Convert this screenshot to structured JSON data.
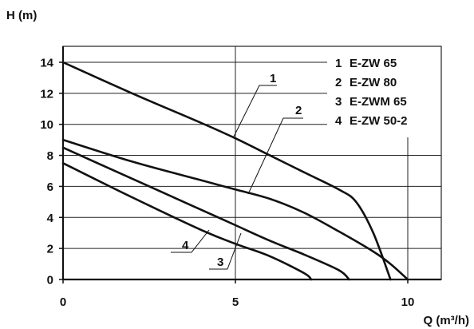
{
  "chart_data": {
    "type": "line",
    "title": "",
    "xlabel": "Q (m³/h)",
    "ylabel": "H (m)",
    "xlim": [
      0,
      11
    ],
    "ylim": [
      0,
      15
    ],
    "x_ticks": [
      0,
      5,
      10
    ],
    "y_ticks": [
      0,
      2,
      4,
      6,
      8,
      10,
      12,
      14
    ],
    "grid": "horizontal lines at each y tick; vertical lines at x = 5 and x = 10",
    "legend": {
      "placement": "top-right",
      "entries": [
        {
          "num": "1",
          "label": "E-ZW 65"
        },
        {
          "num": "2",
          "label": "E-ZW 80"
        },
        {
          "num": "3",
          "label": "E-ZWM 65"
        },
        {
          "num": "4",
          "label": "E-ZW 50-2"
        }
      ]
    },
    "series": [
      {
        "id": "1",
        "points": [
          [
            0,
            14
          ],
          [
            2,
            12
          ],
          [
            4,
            10.1
          ],
          [
            5,
            9.1
          ],
          [
            6,
            8
          ],
          [
            7,
            6.9
          ],
          [
            8,
            5.8
          ],
          [
            8.5,
            5
          ],
          [
            9,
            3
          ],
          [
            9.5,
            0
          ]
        ]
      },
      {
        "id": "2",
        "points": [
          [
            0,
            9
          ],
          [
            2,
            7.6
          ],
          [
            4,
            6.4
          ],
          [
            5,
            5.8
          ],
          [
            6,
            5.2
          ],
          [
            7,
            4.3
          ],
          [
            8,
            3.1
          ],
          [
            9,
            1.8
          ],
          [
            9.5,
            1
          ],
          [
            10,
            0
          ]
        ]
      },
      {
        "id": "3",
        "points": [
          [
            0,
            8.5
          ],
          [
            2,
            6.5
          ],
          [
            4,
            4.5
          ],
          [
            5,
            3.5
          ],
          [
            6,
            2.5
          ],
          [
            7,
            1.6
          ],
          [
            8,
            0.6
          ],
          [
            8.3,
            0
          ]
        ]
      },
      {
        "id": "4",
        "points": [
          [
            0,
            7.5
          ],
          [
            2,
            5.3
          ],
          [
            4,
            3.2
          ],
          [
            5,
            2.3
          ],
          [
            6,
            1.5
          ],
          [
            7,
            0.4
          ],
          [
            7.2,
            0
          ]
        ]
      }
    ],
    "callouts": [
      {
        "id": "1",
        "label": "1"
      },
      {
        "id": "2",
        "label": "2"
      },
      {
        "id": "3",
        "label": "3"
      },
      {
        "id": "4",
        "label": "4"
      }
    ]
  }
}
